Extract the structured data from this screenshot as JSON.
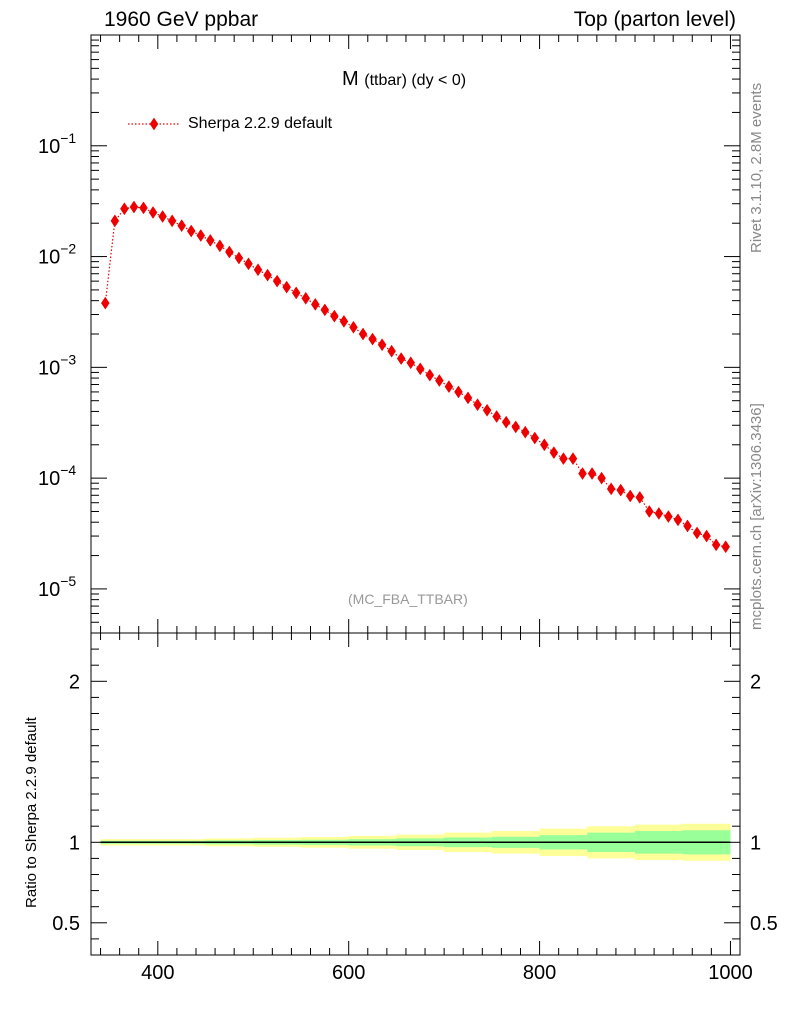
{
  "header": {
    "left": "1960 GeV ppbar",
    "right": "Top (parton level)"
  },
  "side": {
    "rivet": "Rivet 3.1.10,  2.8M events",
    "mcplots": "mcplots.cern.ch [arXiv:1306.3436]"
  },
  "plot": {
    "title_main": "M",
    "title_sub": "(ttbar) (dy < 0)",
    "watermark": "(MC_FBA_TTBAR)"
  },
  "colors": {
    "series": "#ee0000",
    "band_inner": "#99ff99",
    "band_outer": "#ffff99"
  },
  "chart_data": [
    {
      "type": "scatter",
      "yscale": "log",
      "xlim": [
        330,
        1010
      ],
      "ylim": [
        4e-06,
        1
      ],
      "legend": "top-left",
      "yticks": [
        {
          "value": 0.1,
          "base": "10",
          "exp": "−1"
        },
        {
          "value": 0.01,
          "base": "10",
          "exp": "−2"
        },
        {
          "value": 0.001,
          "base": "10",
          "exp": "−3"
        },
        {
          "value": 0.0001,
          "base": "10",
          "exp": "−4"
        },
        {
          "value": 1e-05,
          "base": "10",
          "exp": "−5"
        }
      ],
      "series": [
        {
          "name": "Sherpa 2.2.9 default",
          "line_style": "dotted",
          "marker": "diamond",
          "x": [
            345,
            355,
            365,
            375,
            385,
            395,
            405,
            415,
            425,
            435,
            445,
            455,
            465,
            475,
            485,
            495,
            505,
            515,
            525,
            535,
            545,
            555,
            565,
            575,
            585,
            595,
            605,
            615,
            625,
            635,
            645,
            655,
            665,
            675,
            685,
            695,
            705,
            715,
            725,
            735,
            745,
            755,
            765,
            775,
            785,
            795,
            805,
            815,
            825,
            835,
            845,
            855,
            865,
            875,
            885,
            895,
            905,
            915,
            925,
            935,
            945,
            955,
            965,
            975,
            985,
            995
          ],
          "y": [
            0.0038,
            0.021,
            0.027,
            0.028,
            0.0275,
            0.025,
            0.023,
            0.021,
            0.019,
            0.017,
            0.0155,
            0.014,
            0.0125,
            0.011,
            0.0097,
            0.0086,
            0.0076,
            0.0068,
            0.006,
            0.0053,
            0.0047,
            0.0042,
            0.0037,
            0.0033,
            0.0029,
            0.0026,
            0.0023,
            0.002,
            0.0018,
            0.0016,
            0.0014,
            0.0012,
            0.0011,
            0.00097,
            0.00085,
            0.00076,
            0.00067,
            0.0006,
            0.00053,
            0.00046,
            0.00041,
            0.00036,
            0.00032,
            0.00029,
            0.00026,
            0.00023,
            0.0002,
            0.00017,
            0.00015,
            0.00015,
            0.00011,
            0.00011,
            0.0001,
            8e-05,
            7.8e-05,
            6.9e-05,
            6.7e-05,
            5e-05,
            4.8e-05,
            4.5e-05,
            4.2e-05,
            3.7e-05,
            3.2e-05,
            3e-05,
            2.5e-05,
            2.4e-05
          ]
        }
      ]
    },
    {
      "type": "area",
      "xlim": [
        330,
        1010
      ],
      "ylim": [
        0.3,
        2.3
      ],
      "ylabel": "Ratio to Sherpa 2.2.9 default",
      "yticks": [
        {
          "value": 2,
          "label": "2"
        },
        {
          "value": 1,
          "label": "1"
        },
        {
          "value": 0.5,
          "label": "0.5"
        }
      ],
      "xticks": [
        {
          "value": 400,
          "label": "400"
        },
        {
          "value": 600,
          "label": "600"
        },
        {
          "value": 800,
          "label": "800"
        },
        {
          "value": 1000,
          "label": "1000"
        }
      ],
      "reference_line": 1,
      "bands": {
        "x_edges": [
          340,
          400,
          450,
          500,
          550,
          600,
          650,
          700,
          750,
          800,
          850,
          900,
          950,
          1000
        ],
        "inner_half_width": [
          0.01,
          0.01,
          0.012,
          0.014,
          0.016,
          0.02,
          0.024,
          0.03,
          0.035,
          0.045,
          0.06,
          0.07,
          0.075,
          0.08
        ],
        "outer_half_width": [
          0.02,
          0.02,
          0.024,
          0.028,
          0.033,
          0.04,
          0.048,
          0.06,
          0.07,
          0.085,
          0.1,
          0.11,
          0.115,
          0.12
        ]
      }
    }
  ]
}
